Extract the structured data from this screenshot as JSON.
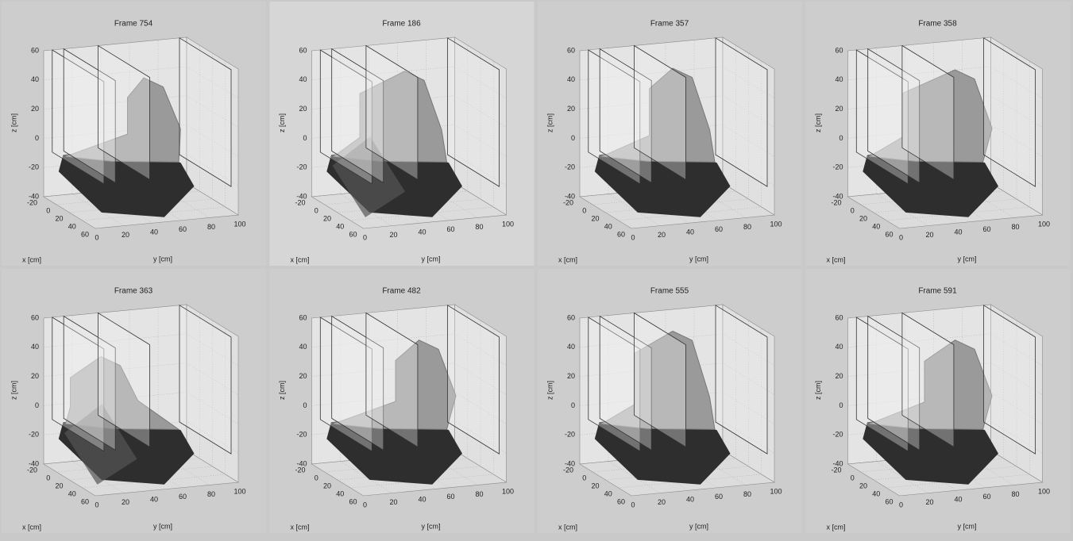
{
  "panels": [
    {
      "title": "Frame 754"
    },
    {
      "title": "Frame 186"
    },
    {
      "title": "Frame 357"
    },
    {
      "title": "Frame 358"
    },
    {
      "title": "Frame 363"
    },
    {
      "title": "Frame 482"
    },
    {
      "title": "Frame 555"
    },
    {
      "title": "Frame 591"
    }
  ],
  "axes": {
    "z_label": "z [cm]",
    "x_label": "x [cm]",
    "y_label": "y [cm]",
    "z_ticks": [
      "60",
      "40",
      "20",
      "0",
      "-20",
      "-40"
    ],
    "x_ticks": [
      "-20",
      "0",
      "20",
      "40",
      "60"
    ],
    "y_ticks": [
      "0",
      "20",
      "40",
      "60",
      "80",
      "100"
    ]
  }
}
